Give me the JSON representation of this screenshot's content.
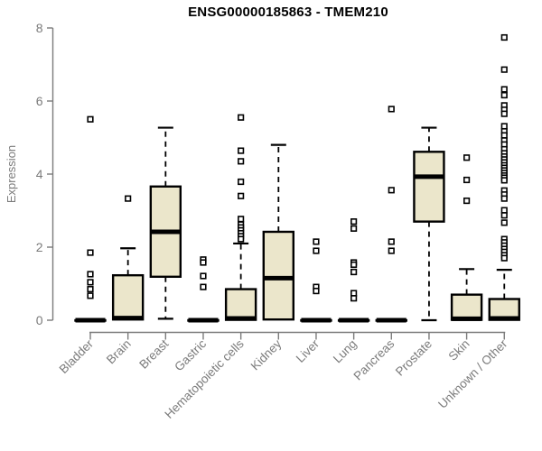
{
  "chart_data": {
    "type": "box",
    "title": "ENSG00000185863 - TMEM210",
    "ylabel": "Expression",
    "xlabel": "",
    "ylim": [
      0,
      8
    ],
    "yticks": [
      0,
      2,
      4,
      6,
      8
    ],
    "grid": false,
    "legend": false,
    "colors": {
      "box_fill": "#EBE6CB",
      "box_stroke": "#000000",
      "axis_color": "#7b7b7b",
      "title_color": "#000000",
      "background": "#ffffff"
    },
    "categories": [
      "Bladder",
      "Brain",
      "Breast",
      "Gastric",
      "Hematopoietic cells",
      "Kidney",
      "Liver",
      "Lung",
      "Pancreas",
      "Prostate",
      "Skin",
      "Unknown / Other"
    ],
    "series": [
      {
        "category": "Bladder",
        "whisker_low": 0,
        "q1": 0,
        "median": 0,
        "q3": 0,
        "whisker_high": 0,
        "outliers": [
          5.5,
          1.85,
          1.26,
          1.04,
          0.85,
          0.67
        ]
      },
      {
        "category": "Brain",
        "whisker_low": 0,
        "q1": 0.02,
        "median": 0.06,
        "q3": 1.23,
        "whisker_high": 1.97,
        "outliers": [
          3.33
        ]
      },
      {
        "category": "Breast",
        "whisker_low": 0.04,
        "q1": 1.19,
        "median": 2.42,
        "q3": 3.66,
        "whisker_high": 5.27,
        "outliers": []
      },
      {
        "category": "Gastric",
        "whisker_low": 0,
        "q1": 0,
        "median": 0,
        "q3": 0,
        "whisker_high": 0,
        "outliers": [
          1.66,
          1.58,
          1.21,
          0.91
        ]
      },
      {
        "category": "Hematopoietic cells",
        "whisker_low": 0,
        "q1": 0.01,
        "median": 0.05,
        "q3": 0.85,
        "whisker_high": 2.1,
        "outliers": [
          5.55,
          4.64,
          4.35,
          3.79,
          3.4,
          2.77,
          2.62,
          2.54,
          2.46,
          2.38,
          2.3,
          2.22
        ]
      },
      {
        "category": "Kidney",
        "whisker_low": 0,
        "q1": 0.02,
        "median": 1.15,
        "q3": 2.42,
        "whisker_high": 4.8,
        "outliers": []
      },
      {
        "category": "Liver",
        "whisker_low": 0,
        "q1": 0,
        "median": 0,
        "q3": 0,
        "whisker_high": 0,
        "outliers": [
          2.15,
          1.9,
          0.91,
          0.8
        ]
      },
      {
        "category": "Lung",
        "whisker_low": 0,
        "q1": 0,
        "median": 0,
        "q3": 0,
        "whisker_high": 0,
        "outliers": [
          2.7,
          2.51,
          1.58,
          1.52,
          1.32,
          0.74,
          0.6
        ]
      },
      {
        "category": "Pancreas",
        "whisker_low": 0,
        "q1": 0,
        "median": 0,
        "q3": 0,
        "whisker_high": 0,
        "outliers": [
          5.78,
          3.56,
          2.15,
          1.9
        ]
      },
      {
        "category": "Prostate",
        "whisker_low": 0,
        "q1": 2.7,
        "median": 3.93,
        "q3": 4.61,
        "whisker_high": 5.27,
        "outliers": []
      },
      {
        "category": "Skin",
        "whisker_low": 0,
        "q1": 0.01,
        "median": 0.04,
        "q3": 0.7,
        "whisker_high": 1.4,
        "outliers": [
          4.45,
          3.84,
          3.27
        ]
      },
      {
        "category": "Unknown / Other",
        "whisker_low": 0,
        "q1": 0.01,
        "median": 0.05,
        "q3": 0.58,
        "whisker_high": 1.38,
        "outliers": [
          7.74,
          6.86,
          6.32,
          6.16,
          5.88,
          5.76,
          5.65,
          5.31,
          5.17,
          5.06,
          4.92,
          4.81,
          4.68,
          4.57,
          4.48,
          4.4,
          4.32,
          4.24,
          4.17,
          4.1,
          4.03,
          3.96,
          3.9,
          3.83,
          3.55,
          3.44,
          3.33,
          3.01,
          2.87,
          2.67,
          2.22,
          2.13,
          2.04,
          1.95,
          1.87,
          1.78,
          1.7
        ]
      }
    ]
  }
}
